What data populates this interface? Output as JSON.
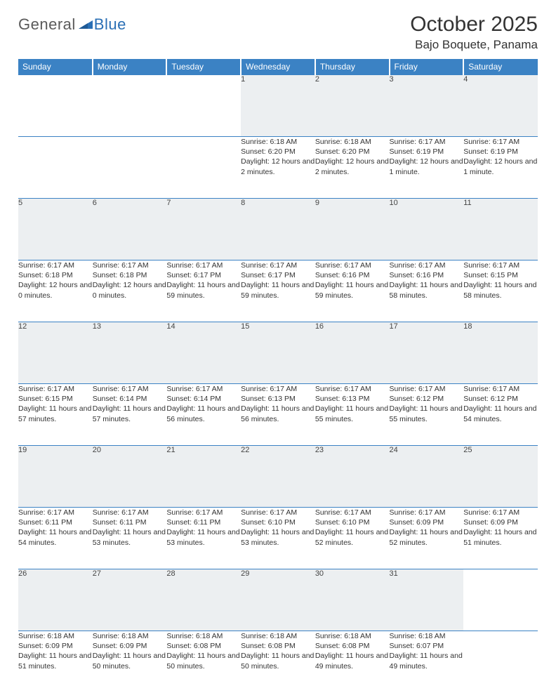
{
  "logo": {
    "text_general": "General",
    "text_blue": "Blue"
  },
  "title": "October 2025",
  "location": "Bajo Boquete, Panama",
  "colors": {
    "header_bg": "#3b82c4",
    "header_text": "#ffffff",
    "daynum_bg": "#eceff1",
    "border": "#3b82c4",
    "logo_gray": "#5a5a5a",
    "logo_blue": "#2a6fb5"
  },
  "day_headers": [
    "Sunday",
    "Monday",
    "Tuesday",
    "Wednesday",
    "Thursday",
    "Friday",
    "Saturday"
  ],
  "weeks": [
    [
      null,
      null,
      null,
      {
        "n": "1",
        "sr": "Sunrise: 6:18 AM",
        "ss": "Sunset: 6:20 PM",
        "dl": "Daylight: 12 hours and 2 minutes."
      },
      {
        "n": "2",
        "sr": "Sunrise: 6:18 AM",
        "ss": "Sunset: 6:20 PM",
        "dl": "Daylight: 12 hours and 2 minutes."
      },
      {
        "n": "3",
        "sr": "Sunrise: 6:17 AM",
        "ss": "Sunset: 6:19 PM",
        "dl": "Daylight: 12 hours and 1 minute."
      },
      {
        "n": "4",
        "sr": "Sunrise: 6:17 AM",
        "ss": "Sunset: 6:19 PM",
        "dl": "Daylight: 12 hours and 1 minute."
      }
    ],
    [
      {
        "n": "5",
        "sr": "Sunrise: 6:17 AM",
        "ss": "Sunset: 6:18 PM",
        "dl": "Daylight: 12 hours and 0 minutes."
      },
      {
        "n": "6",
        "sr": "Sunrise: 6:17 AM",
        "ss": "Sunset: 6:18 PM",
        "dl": "Daylight: 12 hours and 0 minutes."
      },
      {
        "n": "7",
        "sr": "Sunrise: 6:17 AM",
        "ss": "Sunset: 6:17 PM",
        "dl": "Daylight: 11 hours and 59 minutes."
      },
      {
        "n": "8",
        "sr": "Sunrise: 6:17 AM",
        "ss": "Sunset: 6:17 PM",
        "dl": "Daylight: 11 hours and 59 minutes."
      },
      {
        "n": "9",
        "sr": "Sunrise: 6:17 AM",
        "ss": "Sunset: 6:16 PM",
        "dl": "Daylight: 11 hours and 59 minutes."
      },
      {
        "n": "10",
        "sr": "Sunrise: 6:17 AM",
        "ss": "Sunset: 6:16 PM",
        "dl": "Daylight: 11 hours and 58 minutes."
      },
      {
        "n": "11",
        "sr": "Sunrise: 6:17 AM",
        "ss": "Sunset: 6:15 PM",
        "dl": "Daylight: 11 hours and 58 minutes."
      }
    ],
    [
      {
        "n": "12",
        "sr": "Sunrise: 6:17 AM",
        "ss": "Sunset: 6:15 PM",
        "dl": "Daylight: 11 hours and 57 minutes."
      },
      {
        "n": "13",
        "sr": "Sunrise: 6:17 AM",
        "ss": "Sunset: 6:14 PM",
        "dl": "Daylight: 11 hours and 57 minutes."
      },
      {
        "n": "14",
        "sr": "Sunrise: 6:17 AM",
        "ss": "Sunset: 6:14 PM",
        "dl": "Daylight: 11 hours and 56 minutes."
      },
      {
        "n": "15",
        "sr": "Sunrise: 6:17 AM",
        "ss": "Sunset: 6:13 PM",
        "dl": "Daylight: 11 hours and 56 minutes."
      },
      {
        "n": "16",
        "sr": "Sunrise: 6:17 AM",
        "ss": "Sunset: 6:13 PM",
        "dl": "Daylight: 11 hours and 55 minutes."
      },
      {
        "n": "17",
        "sr": "Sunrise: 6:17 AM",
        "ss": "Sunset: 6:12 PM",
        "dl": "Daylight: 11 hours and 55 minutes."
      },
      {
        "n": "18",
        "sr": "Sunrise: 6:17 AM",
        "ss": "Sunset: 6:12 PM",
        "dl": "Daylight: 11 hours and 54 minutes."
      }
    ],
    [
      {
        "n": "19",
        "sr": "Sunrise: 6:17 AM",
        "ss": "Sunset: 6:11 PM",
        "dl": "Daylight: 11 hours and 54 minutes."
      },
      {
        "n": "20",
        "sr": "Sunrise: 6:17 AM",
        "ss": "Sunset: 6:11 PM",
        "dl": "Daylight: 11 hours and 53 minutes."
      },
      {
        "n": "21",
        "sr": "Sunrise: 6:17 AM",
        "ss": "Sunset: 6:11 PM",
        "dl": "Daylight: 11 hours and 53 minutes."
      },
      {
        "n": "22",
        "sr": "Sunrise: 6:17 AM",
        "ss": "Sunset: 6:10 PM",
        "dl": "Daylight: 11 hours and 53 minutes."
      },
      {
        "n": "23",
        "sr": "Sunrise: 6:17 AM",
        "ss": "Sunset: 6:10 PM",
        "dl": "Daylight: 11 hours and 52 minutes."
      },
      {
        "n": "24",
        "sr": "Sunrise: 6:17 AM",
        "ss": "Sunset: 6:09 PM",
        "dl": "Daylight: 11 hours and 52 minutes."
      },
      {
        "n": "25",
        "sr": "Sunrise: 6:17 AM",
        "ss": "Sunset: 6:09 PM",
        "dl": "Daylight: 11 hours and 51 minutes."
      }
    ],
    [
      {
        "n": "26",
        "sr": "Sunrise: 6:18 AM",
        "ss": "Sunset: 6:09 PM",
        "dl": "Daylight: 11 hours and 51 minutes."
      },
      {
        "n": "27",
        "sr": "Sunrise: 6:18 AM",
        "ss": "Sunset: 6:09 PM",
        "dl": "Daylight: 11 hours and 50 minutes."
      },
      {
        "n": "28",
        "sr": "Sunrise: 6:18 AM",
        "ss": "Sunset: 6:08 PM",
        "dl": "Daylight: 11 hours and 50 minutes."
      },
      {
        "n": "29",
        "sr": "Sunrise: 6:18 AM",
        "ss": "Sunset: 6:08 PM",
        "dl": "Daylight: 11 hours and 50 minutes."
      },
      {
        "n": "30",
        "sr": "Sunrise: 6:18 AM",
        "ss": "Sunset: 6:08 PM",
        "dl": "Daylight: 11 hours and 49 minutes."
      },
      {
        "n": "31",
        "sr": "Sunrise: 6:18 AM",
        "ss": "Sunset: 6:07 PM",
        "dl": "Daylight: 11 hours and 49 minutes."
      },
      null
    ]
  ]
}
